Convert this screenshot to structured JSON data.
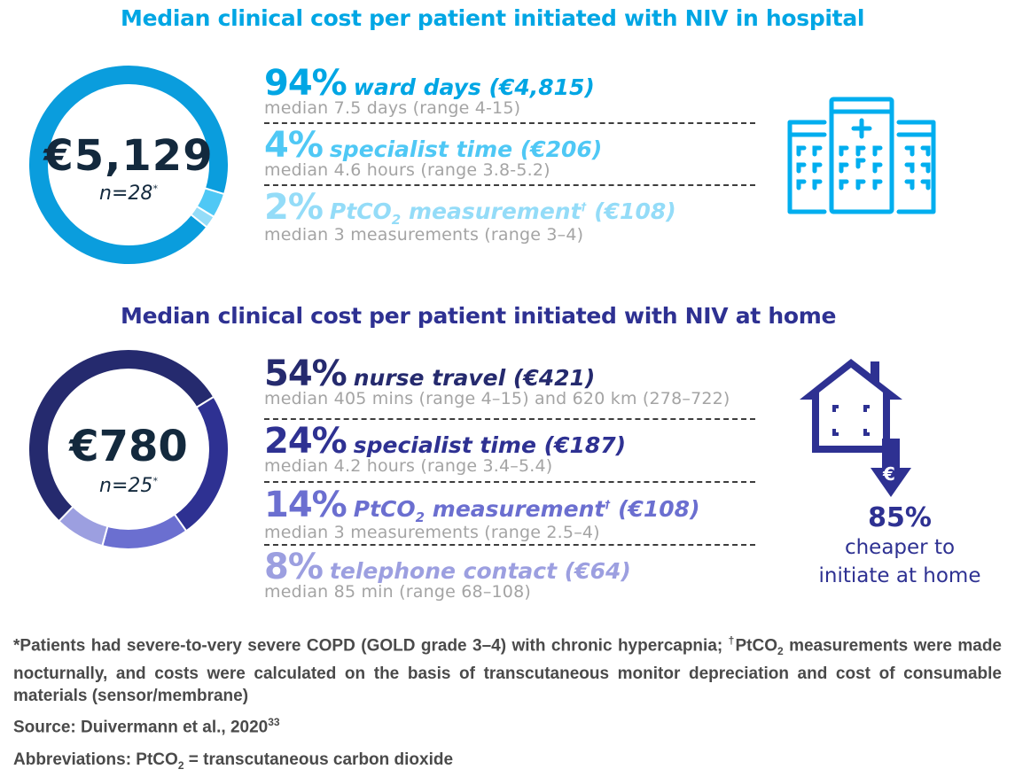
{
  "hospital": {
    "title": "Median clinical cost per patient initiated with NIV in hospital",
    "total": "€5,129",
    "n_prefix": "n",
    "n_value": "=28",
    "n_mark": "*",
    "rows": [
      {
        "pct": "94%",
        "label": "ward days (€4,815)",
        "detail": "median 7.5 days (range 4-15)",
        "color": "#00a6e4"
      },
      {
        "pct": "4%",
        "label": "specialist time (€206)",
        "detail": "median 4.6 hours (range 3.8-5.2)",
        "color": "#4fc8f5"
      },
      {
        "pct": "2%",
        "label_a": "PtCO",
        "label_sub": "2",
        "label_b": " measurement",
        "label_sup": "†",
        "label_c": " (€108)",
        "detail": "median 3 measurements  (range 3–4)",
        "color": "#94dcf8"
      }
    ],
    "icon": "hospital-building-icon"
  },
  "home": {
    "title": "Median clinical cost per patient initiated with NIV at home",
    "total": "€780",
    "n_prefix": "n",
    "n_value": "=25",
    "n_mark": "*",
    "rows": [
      {
        "pct": "54%",
        "label": "nurse travel (€421)",
        "detail": "median 405 mins (range 4–15) and 620 km (278–722)",
        "color": "#252a6e"
      },
      {
        "pct": "24%",
        "label": "specialist time (€187)",
        "detail": "median 4.2 hours (range 3.4–5.4)",
        "color": "#2e3192"
      },
      {
        "pct": "14%",
        "label_a": "PtCO",
        "label_sub": "2",
        "label_b": " measurement",
        "label_sup": "†",
        "label_c": " (€108)",
        "detail": "median 3 measurements  (range 2.5–4)",
        "color": "#6b6fd0"
      },
      {
        "pct": "8%",
        "label": "telephone contact (€64)",
        "detail": "median 85 min (range 68–108)",
        "color": "#9c9fe0"
      }
    ],
    "icon": "house-euro-down-arrow-icon",
    "savings_pct": "85%",
    "savings_line1": "cheaper to",
    "savings_line2": "initiate at home"
  },
  "chart_data": [
    {
      "type": "pie",
      "title": "Median clinical cost per patient initiated with NIV in hospital",
      "center_label": "€5,129",
      "n": 28,
      "slices": [
        {
          "label": "ward days",
          "percent": 94,
          "cost_eur": 4815,
          "color": "#0a9ddd"
        },
        {
          "label": "specialist time",
          "percent": 4,
          "cost_eur": 206,
          "color": "#4fc8f5"
        },
        {
          "label": "PtCO2 measurement",
          "percent": 2,
          "cost_eur": 108,
          "color": "#94dcf8"
        }
      ]
    },
    {
      "type": "pie",
      "title": "Median clinical cost per patient initiated with NIV at home",
      "center_label": "€780",
      "n": 25,
      "slices": [
        {
          "label": "nurse travel",
          "percent": 54,
          "cost_eur": 421,
          "color": "#252a6e"
        },
        {
          "label": "specialist time",
          "percent": 24,
          "cost_eur": 187,
          "color": "#2e3192"
        },
        {
          "label": "PtCO2 measurement",
          "percent": 14,
          "cost_eur": 108,
          "color": "#6b6fd0"
        },
        {
          "label": "telephone contact",
          "percent": 8,
          "cost_eur": 64,
          "color": "#9c9fe0"
        }
      ]
    }
  ],
  "footer": {
    "footnote_a": "*Patients had severe-to-very severe COPD (GOLD grade 3–4) with chronic hypercapnia; ",
    "footnote_sup": "†",
    "footnote_b": "PtCO",
    "footnote_sub": "2",
    "footnote_c": " measurements were made nocturnally, and costs were calculated on the basis of transcutaneous monitor depreciation and cost of consumable materials (sensor/membrane)",
    "source": "Source: Duivermann et al., 2020",
    "source_ref": "33",
    "abbrev_a": "Abbreviations: PtCO",
    "abbrev_sub": "2",
    "abbrev_b": " = transcutaneous carbon dioxide"
  }
}
